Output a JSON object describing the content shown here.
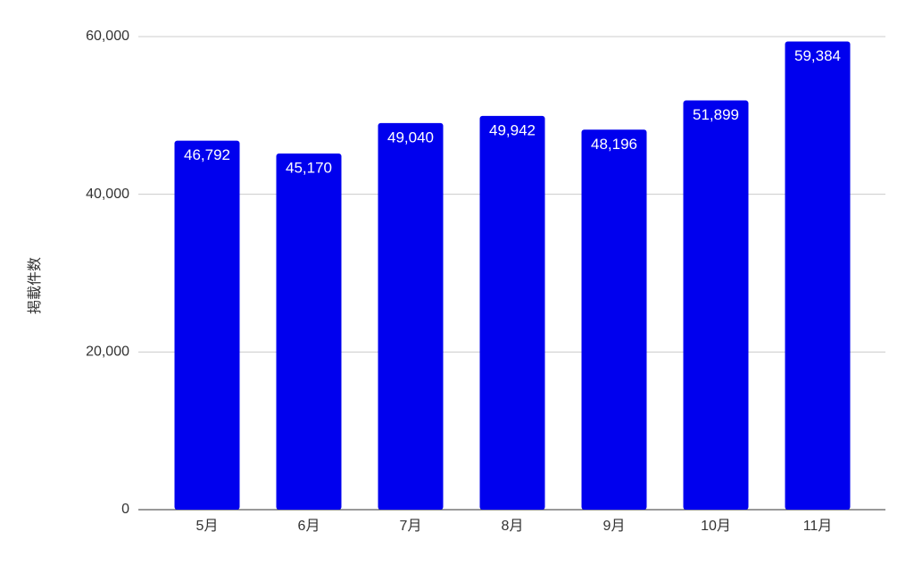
{
  "chart_data": {
    "type": "bar",
    "y_label": "掲載件数",
    "categories": [
      "5月",
      "6月",
      "7月",
      "8月",
      "9月",
      "10月",
      "11月"
    ],
    "values": [
      46792,
      45170,
      49040,
      49942,
      48196,
      51899,
      59384
    ],
    "value_labels": [
      "46,792",
      "45,170",
      "49,040",
      "49,942",
      "48,196",
      "51,899",
      "59,384"
    ],
    "color": "#0000ee",
    "ylim": [
      0,
      60000
    ],
    "yticks": [
      0,
      {
        "value": 20000,
        "label": "20,000"
      },
      {
        "value": 40000,
        "label": "40,000"
      },
      {
        "value": 60000,
        "label": "60,000"
      }
    ],
    "grid": true
  }
}
